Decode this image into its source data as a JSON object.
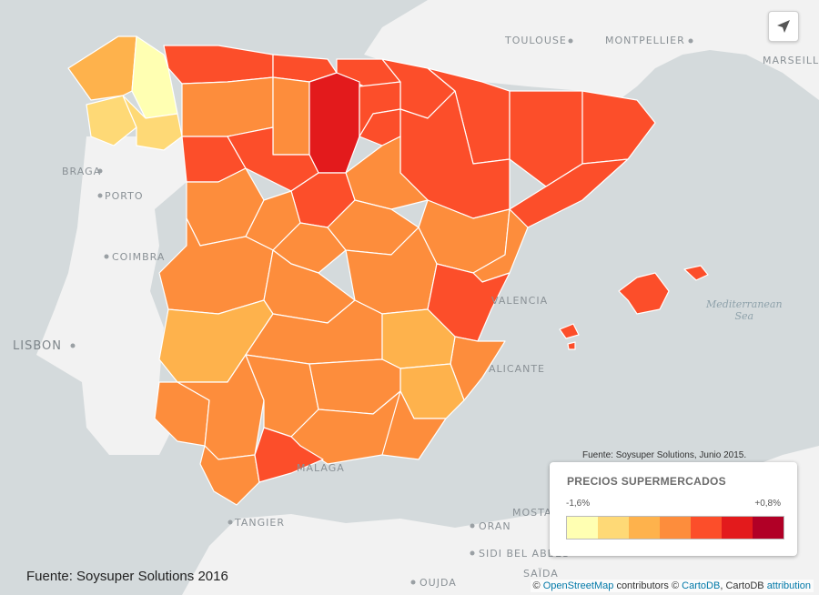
{
  "map": {
    "cities": [
      {
        "id": "toulouse",
        "label": "TOULOUSE"
      },
      {
        "id": "montpellier",
        "label": "MONTPELLIER"
      },
      {
        "id": "marseille",
        "label": "MARSEILLE"
      },
      {
        "id": "braga",
        "label": "BRAGA"
      },
      {
        "id": "porto",
        "label": "PORTO"
      },
      {
        "id": "coimbra",
        "label": "COIMBRA"
      },
      {
        "id": "lisbon",
        "label": "LISBON"
      },
      {
        "id": "valencia",
        "label": "VALENCIA"
      },
      {
        "id": "alicante",
        "label": "ALICANTE"
      },
      {
        "id": "malaga",
        "label": "MALAGA"
      },
      {
        "id": "tangier",
        "label": "TANGIER"
      },
      {
        "id": "oran",
        "label": "ORAN"
      },
      {
        "id": "mosta",
        "label": "MOSTA"
      },
      {
        "id": "sidibel",
        "label": "SIDI BEL ABBES"
      },
      {
        "id": "oujda",
        "label": "OUJDA"
      },
      {
        "id": "saida",
        "label": "SAÏDA"
      }
    ],
    "sea_label_1": "Mediterranean",
    "sea_label_2": "Sea"
  },
  "legend": {
    "title": "PRECIOS SUPERMERCADOS",
    "min_label": "-1,6%",
    "max_label": "+0,8%",
    "colors": [
      "#ffffb2",
      "#fed976",
      "#feb24c",
      "#fd8d3c",
      "#fc4e2a",
      "#e31a1c",
      "#b10026"
    ]
  },
  "source_note": "Fuente: Soysuper Solutions, Junio 2015.",
  "source_main": "Fuente: Soysuper Solutions 2016",
  "attribution": {
    "prefix": "©",
    "osm": "OpenStreetMap",
    "contributors": "contributors ©",
    "cartodb": "CartoDB",
    "cartodb_plain": ", CartoDB",
    "link": "attribution"
  },
  "icons": {
    "navigate": "navigation-arrow-icon"
  }
}
